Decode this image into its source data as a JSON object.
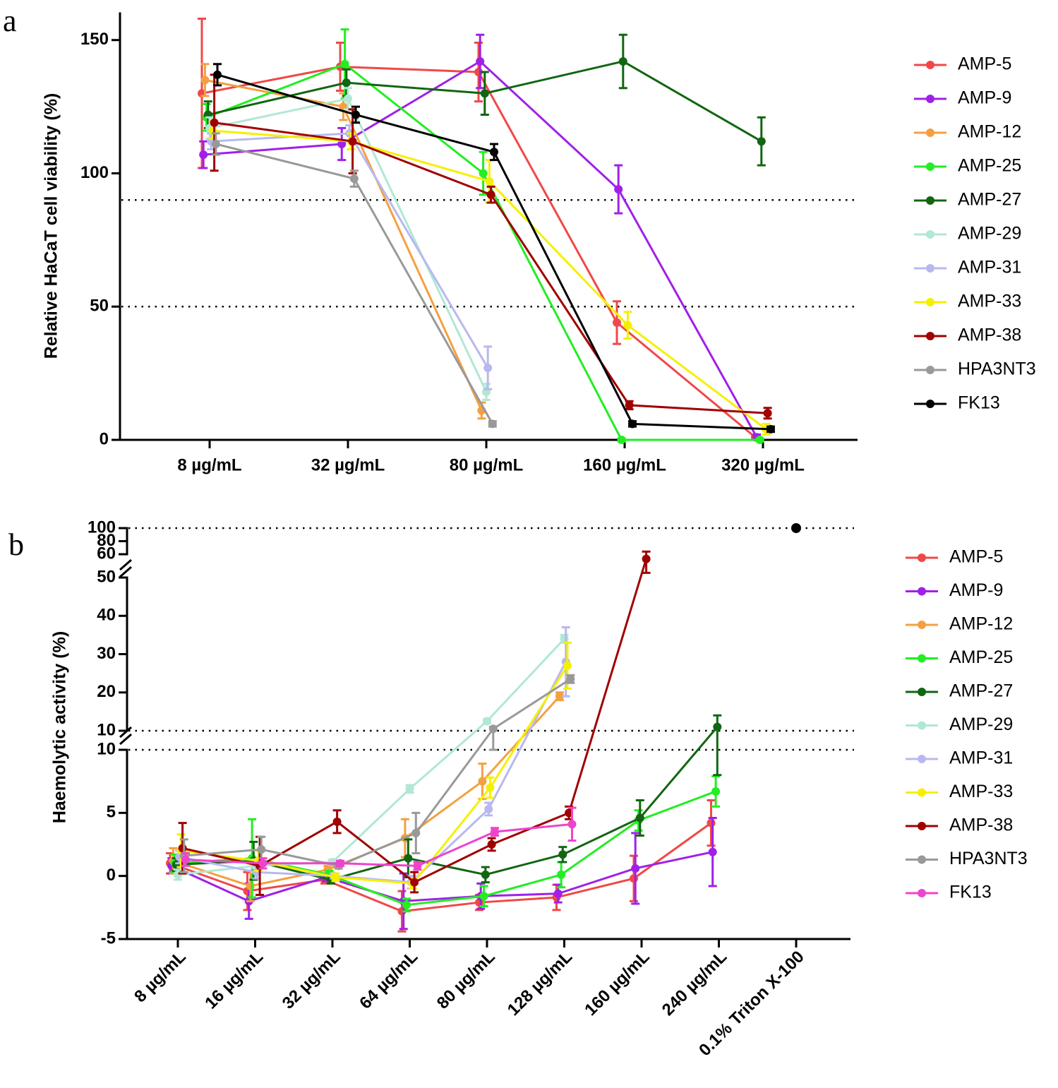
{
  "chart_data": [
    {
      "type": "line",
      "panel_label": "a",
      "y_label": "Relative HaCaT cell viability (%)",
      "categories": [
        "8 µg/mL",
        "32 µg/mL",
        "80 µg/mL",
        "160 µg/mL",
        "320 µg/mL"
      ],
      "ylim": [
        0,
        160
      ],
      "yticks": [
        0,
        50,
        100,
        150
      ],
      "reference_lines": [
        90,
        50
      ],
      "series": [
        {
          "name": "AMP-5",
          "color": "#f04848",
          "values": [
            130,
            140,
            138,
            44,
            1
          ],
          "errors": [
            28,
            9,
            11,
            8,
            1
          ]
        },
        {
          "name": "AMP-9",
          "color": "#a020e8",
          "values": [
            107,
            111,
            142,
            94,
            1
          ],
          "errors": [
            5,
            6,
            10,
            9,
            1
          ]
        },
        {
          "name": "AMP-12",
          "color": "#f4a040",
          "values": [
            135,
            125,
            11,
            null,
            null
          ],
          "errors": [
            6,
            5,
            3,
            null,
            null
          ]
        },
        {
          "name": "AMP-25",
          "color": "#22ee22",
          "values": [
            121,
            141,
            100,
            0,
            0
          ],
          "errors": [
            5,
            13,
            8,
            0.5,
            0.5
          ]
        },
        {
          "name": "AMP-27",
          "color": "#116611",
          "values": [
            122,
            134,
            130,
            142,
            112
          ],
          "errors": [
            5,
            5,
            8,
            10,
            9
          ]
        },
        {
          "name": "AMP-29",
          "color": "#b0e8d4",
          "values": [
            117,
            128,
            18,
            null,
            null
          ],
          "errors": [
            4,
            4,
            3,
            null,
            null
          ]
        },
        {
          "name": "AMP-31",
          "color": "#b8b8f0",
          "values": [
            112,
            115,
            27,
            null,
            null
          ],
          "errors": [
            3,
            3,
            8,
            null,
            null
          ]
        },
        {
          "name": "AMP-33",
          "color": "#f5f000",
          "values": [
            116,
            112,
            97,
            43,
            4
          ],
          "errors": [
            3,
            3,
            8,
            5,
            2
          ]
        },
        {
          "name": "AMP-38",
          "color": "#a00000",
          "values": [
            119,
            112,
            92,
            13,
            10
          ],
          "errors": [
            18,
            12,
            3,
            1.5,
            2
          ]
        },
        {
          "name": "HPA3NT3",
          "color": "#999999",
          "values": [
            111,
            98,
            6,
            null,
            null
          ],
          "errors": [
            4,
            3,
            1,
            null,
            null
          ]
        },
        {
          "name": "FK13",
          "color": "#000000",
          "values": [
            137,
            122,
            108,
            6,
            4
          ],
          "errors": [
            4,
            3,
            3,
            1,
            1
          ]
        }
      ]
    },
    {
      "type": "line",
      "panel_label": "b",
      "y_label": "Haemolytic activity (%)",
      "categories": [
        "8 µg/mL",
        "16 µg/mL",
        "32 µg/mL",
        "64 µg/mL",
        "80 µg/mL",
        "128 µg/mL",
        "160 µg/mL",
        "240 µg/mL",
        "0.1% Triton X-100"
      ],
      "yaxis_segments": [
        {
          "ylim": [
            -5,
            10
          ],
          "yticks": [
            -5,
            0,
            5,
            10
          ]
        },
        {
          "ylim": [
            10,
            50
          ],
          "yticks": [
            10,
            20,
            30,
            40,
            50
          ]
        },
        {
          "ylim": [
            60,
            100
          ],
          "yticks": [
            60,
            80,
            100
          ]
        }
      ],
      "reference_lines": [
        10,
        100
      ],
      "triton_control": {
        "value": 100,
        "color": "#000000"
      },
      "series": [
        {
          "name": "AMP-5",
          "color": "#f04848",
          "values": [
            1.0,
            -1.2,
            -0.3,
            -2.8,
            -2.1,
            -1.7,
            -0.2,
            4.2,
            null
          ],
          "errors": [
            0.8,
            1.5,
            0.3,
            1.6,
            0.6,
            1.0,
            1.8,
            1.8,
            null
          ]
        },
        {
          "name": "AMP-9",
          "color": "#a020e8",
          "values": [
            0.8,
            -2.0,
            -0.1,
            -2.0,
            -1.6,
            -1.4,
            0.6,
            1.9,
            null
          ],
          "errors": [
            0.6,
            1.4,
            0.3,
            2.2,
            1.0,
            0.7,
            2.8,
            2.7,
            null
          ]
        },
        {
          "name": "AMP-12",
          "color": "#f4a040",
          "values": [
            1.2,
            -0.8,
            0.5,
            3.0,
            7.5,
            19,
            null,
            null,
            null
          ],
          "errors": [
            1.0,
            1.2,
            0.3,
            1.5,
            1.4,
            1,
            null,
            null,
            null
          ]
        },
        {
          "name": "AMP-25",
          "color": "#22ee22",
          "values": [
            1.0,
            1.4,
            0.1,
            -2.3,
            -1.6,
            0.1,
            4.4,
            6.7,
            null
          ],
          "errors": [
            0.7,
            3.1,
            0.3,
            0.5,
            0.8,
            1.0,
            0.8,
            1.2,
            null
          ]
        },
        {
          "name": "AMP-27",
          "color": "#116611",
          "values": [
            0.9,
            1.2,
            -0.3,
            1.4,
            0.1,
            1.7,
            4.6,
            11,
            null
          ],
          "errors": [
            0.5,
            1.5,
            0.3,
            1.5,
            0.6,
            0.6,
            1.4,
            3,
            null
          ]
        },
        {
          "name": "AMP-29",
          "color": "#b0e8d4",
          "values": [
            0.1,
            0.8,
            1.1,
            6.9,
            12.5,
            34,
            null,
            null,
            null
          ],
          "errors": [
            0.4,
            0.5,
            0.2,
            0.3,
            0.5,
            1,
            null,
            null,
            null
          ]
        },
        {
          "name": "AMP-31",
          "color": "#b8b8f0",
          "values": [
            1.5,
            0.3,
            0.0,
            -0.5,
            5.3,
            28,
            null,
            null,
            null
          ],
          "errors": [
            0.5,
            0.5,
            0.2,
            0.5,
            0.5,
            9,
            null,
            null,
            null
          ]
        },
        {
          "name": "AMP-33",
          "color": "#f5f000",
          "values": [
            2.0,
            1.2,
            -0.1,
            -0.6,
            7.0,
            27,
            null,
            null,
            null
          ],
          "errors": [
            1.3,
            0.8,
            0.3,
            0.4,
            0.8,
            6,
            null,
            null,
            null
          ]
        },
        {
          "name": "AMP-38",
          "color": "#a00000",
          "values": [
            2.2,
            0.8,
            4.3,
            -0.5,
            2.5,
            5.0,
            58,
            null,
            null
          ],
          "errors": [
            2.0,
            2.3,
            0.9,
            0.8,
            0.5,
            0.5,
            6,
            null,
            null
          ]
        },
        {
          "name": "HPA3NT3",
          "color": "#999999",
          "values": [
            1.6,
            2.1,
            0.8,
            3.4,
            10.5,
            23.5,
            null,
            null,
            null
          ],
          "errors": [
            1.3,
            1.0,
            0.2,
            1.6,
            0.5,
            1,
            null,
            null,
            null
          ]
        },
        {
          "name": "FK13",
          "color": "#ee44cc",
          "values": [
            1.3,
            1.0,
            1.0,
            0.8,
            3.5,
            4.1,
            null,
            null,
            null
          ],
          "errors": [
            0.5,
            0.4,
            0.2,
            0.3,
            0.3,
            1.3,
            null,
            null,
            null
          ]
        }
      ]
    }
  ]
}
